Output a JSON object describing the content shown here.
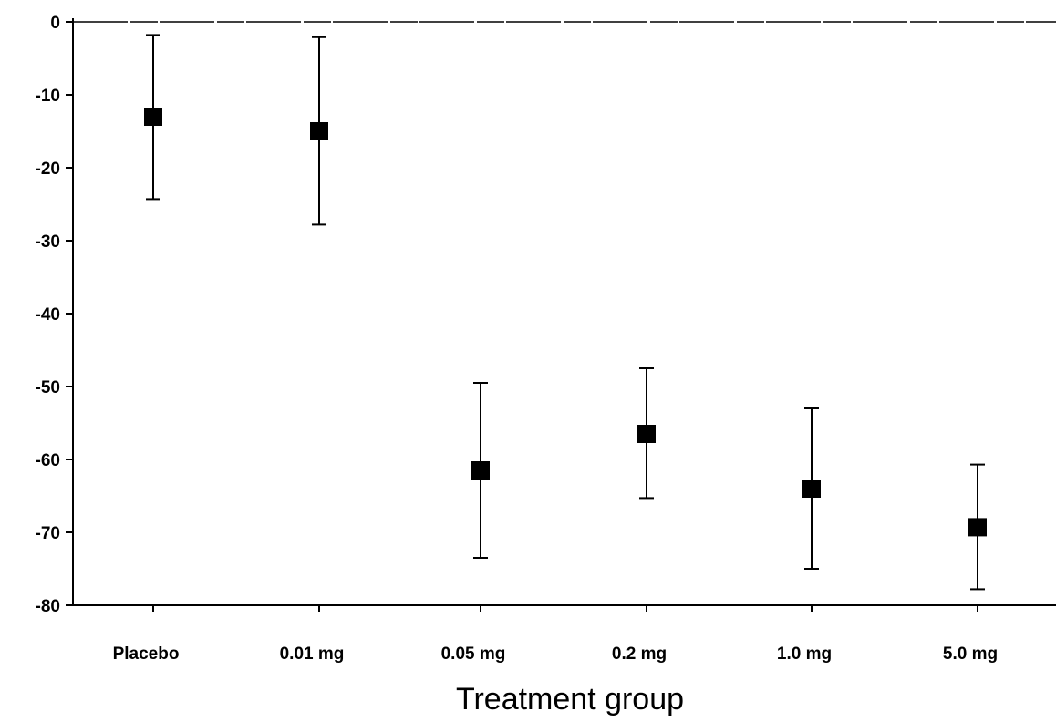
{
  "chart_data": {
    "type": "scatter",
    "title": "",
    "xlabel": "Treatment group",
    "ylabel": "",
    "categories": [
      "Placebo",
      "0.01 mg",
      "0.05 mg",
      "0.2 mg",
      "1.0 mg",
      "5.0 mg"
    ],
    "series": [
      {
        "values": [
          -13,
          -15,
          -61.5,
          -56.5,
          -64,
          -69.3
        ],
        "lower": [
          -24.3,
          -27.8,
          -73.5,
          -65.3,
          -75,
          -77.8
        ],
        "upper": [
          -1.8,
          -2.1,
          -49.5,
          -47.5,
          -53,
          -60.7
        ]
      }
    ],
    "ylim": [
      -80,
      0
    ],
    "yticks": [
      0,
      -10,
      -20,
      -30,
      -40,
      -50,
      -60,
      -70,
      -80
    ],
    "ytick_labels": [
      "0",
      "-10",
      "-20",
      "-30",
      "-40",
      "-50",
      "-60",
      "-70",
      "-80"
    ],
    "grid": false,
    "legend": "none",
    "marker": "square",
    "marker_color": "#000000"
  }
}
